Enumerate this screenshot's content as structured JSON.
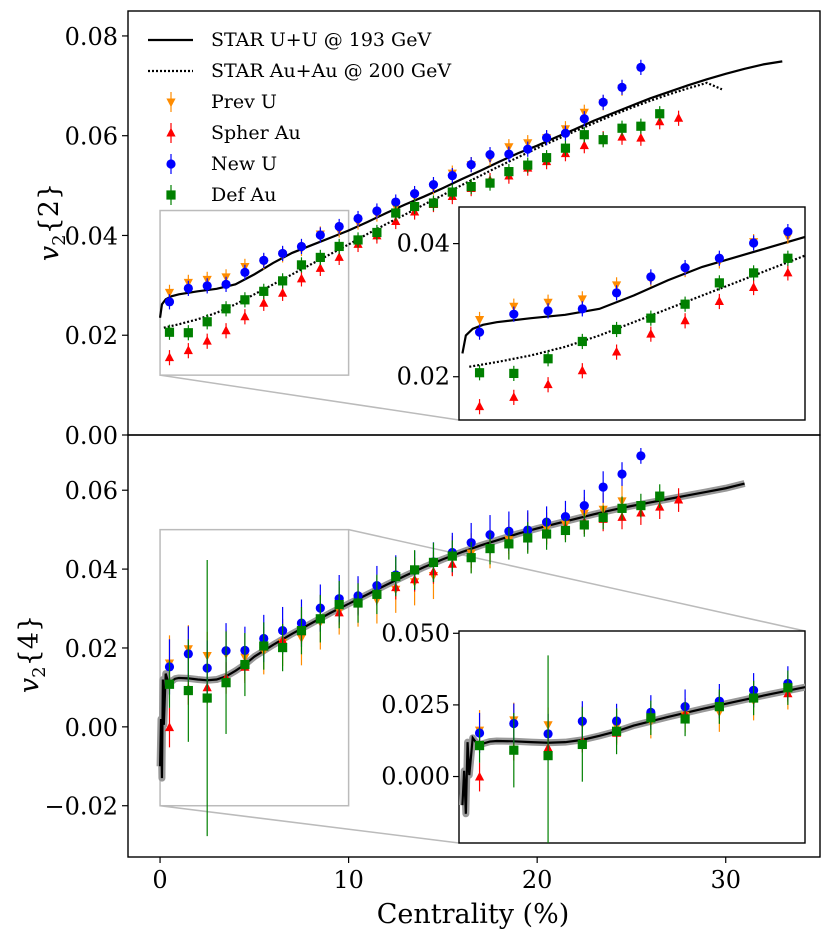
{
  "chart_data": [
    {
      "type": "scatter",
      "panel": "top",
      "ylabel": "v2{2}",
      "ylabel_main": "v",
      "ylabel_sub": "2",
      "ylabel_brace": "{2}",
      "xlim": [
        -1.7,
        35
      ],
      "ylim": [
        0.0,
        0.085
      ],
      "yticks": [
        0.0,
        0.02,
        0.04,
        0.06,
        0.08
      ],
      "ytick_labels": [
        "0.00",
        "0.02",
        "0.04",
        "0.06",
        "0.08"
      ],
      "legend_position": "top-left",
      "legend": [
        {
          "key": "star_uu",
          "label": "STAR U+U @ 193 GeV",
          "style": "solid-line"
        },
        {
          "key": "star_auau",
          "label": "STAR Au+Au @ 200 GeV",
          "style": "dotted-line"
        },
        {
          "key": "prev_u",
          "label": "Prev U",
          "style": "triangle-down",
          "color": "#ff8c00"
        },
        {
          "key": "spher_au",
          "label": "Spher Au",
          "style": "triangle-up",
          "color": "#ff0000"
        },
        {
          "key": "new_u",
          "label": "New U",
          "style": "circle",
          "color": "#0000ff"
        },
        {
          "key": "def_au",
          "label": "Def Au",
          "style": "square",
          "color": "#008000"
        }
      ],
      "lines": [
        {
          "name": "STAR U+U @ 193 GeV",
          "style": "solid",
          "x": [
            0,
            0.1,
            0.3,
            0.6,
            1,
            2,
            3,
            4,
            5,
            6,
            7,
            8,
            9,
            10,
            11,
            12,
            13,
            14,
            15,
            16,
            17,
            18,
            19,
            20,
            21,
            22,
            23,
            24,
            25,
            26,
            27,
            28,
            29,
            30,
            31,
            32,
            33
          ],
          "y": [
            0.0235,
            0.0262,
            0.0272,
            0.0278,
            0.0282,
            0.0288,
            0.0293,
            0.0302,
            0.0322,
            0.0345,
            0.0365,
            0.038,
            0.0395,
            0.041,
            0.0427,
            0.0445,
            0.0462,
            0.0478,
            0.0495,
            0.0513,
            0.053,
            0.0548,
            0.0565,
            0.058,
            0.0597,
            0.0613,
            0.063,
            0.0645,
            0.066,
            0.0675,
            0.0688,
            0.0701,
            0.0713,
            0.0724,
            0.0734,
            0.0743,
            0.0749
          ]
        },
        {
          "name": "STAR Au+Au @ 200 GeV",
          "style": "dotted",
          "x": [
            0.2,
            1,
            2,
            3,
            4,
            5,
            6,
            7,
            8,
            9,
            10,
            11,
            12,
            13,
            14,
            15,
            16,
            17,
            18,
            19,
            20,
            21,
            22,
            23,
            24,
            25,
            26,
            27,
            28,
            29,
            29.8
          ],
          "y": [
            0.0215,
            0.0222,
            0.0232,
            0.0245,
            0.0262,
            0.0282,
            0.0302,
            0.0322,
            0.0342,
            0.0362,
            0.0382,
            0.0403,
            0.0423,
            0.0442,
            0.0462,
            0.0481,
            0.0501,
            0.052,
            0.0539,
            0.0557,
            0.0575,
            0.0592,
            0.0609,
            0.0625,
            0.0641,
            0.0656,
            0.067,
            0.0683,
            0.0695,
            0.0706,
            0.0693
          ]
        }
      ],
      "series": [
        {
          "name": "Prev U",
          "x": [
            0.5,
            1.5,
            2.5,
            3.5,
            4.5,
            5.5,
            6.5,
            7.5,
            8.5,
            9.5,
            10.5,
            11.5,
            12.5,
            13.5,
            14.5,
            15.5,
            16.5,
            17.5,
            18.5,
            19.5,
            20.5,
            21.5,
            22.5,
            23.5,
            24.5
          ],
          "y": [
            0.0286,
            0.0306,
            0.0312,
            0.0317,
            0.0338,
            0.0347,
            0.0361,
            0.0374,
            0.0403,
            0.0411,
            0.0427,
            0.0443,
            0.0458,
            0.0479,
            0.0497,
            0.0525,
            0.0542,
            0.0555,
            0.0578,
            0.0586,
            0.0596,
            0.0614,
            0.0647,
            0.0666,
            0.0695
          ]
        },
        {
          "name": "Spher Au",
          "x": [
            0.5,
            1.5,
            2.5,
            3.5,
            4.5,
            5.5,
            6.5,
            7.5,
            8.5,
            9.5,
            10.5,
            11.5,
            12.5,
            13.5,
            14.5,
            15.5,
            16.5,
            17.5,
            18.5,
            19.5,
            20.5,
            21.5,
            22.5,
            23.5,
            24.5,
            25.5,
            26.5,
            27.5
          ],
          "y": [
            0.0155,
            0.0169,
            0.0188,
            0.0209,
            0.0237,
            0.0264,
            0.0284,
            0.0313,
            0.0334,
            0.0356,
            0.0382,
            0.0399,
            0.0428,
            0.0447,
            0.0462,
            0.0478,
            0.0494,
            0.051,
            0.0519,
            0.0535,
            0.0548,
            0.0564,
            0.058,
            0.0594,
            0.0597,
            0.0595,
            0.0628,
            0.0635
          ]
        },
        {
          "name": "New U",
          "x": [
            0.5,
            1.5,
            2.5,
            3.5,
            4.5,
            5.5,
            6.5,
            7.5,
            8.5,
            9.5,
            10.5,
            11.5,
            12.5,
            13.5,
            14.5,
            15.5,
            16.5,
            17.5,
            18.5,
            19.5,
            20.5,
            21.5,
            22.5,
            23.5,
            24.5,
            25.5
          ],
          "y": [
            0.0267,
            0.0294,
            0.0299,
            0.0302,
            0.0326,
            0.035,
            0.0364,
            0.0378,
            0.0401,
            0.0418,
            0.0434,
            0.0449,
            0.0467,
            0.0484,
            0.0502,
            0.052,
            0.0542,
            0.0562,
            0.0563,
            0.0573,
            0.0596,
            0.0605,
            0.0634,
            0.0667,
            0.0697,
            0.0737
          ]
        },
        {
          "name": "Def Au",
          "x": [
            0.5,
            1.5,
            2.5,
            3.5,
            4.5,
            5.5,
            6.5,
            7.5,
            8.5,
            9.5,
            10.5,
            11.5,
            12.5,
            13.5,
            14.5,
            15.5,
            16.5,
            17.5,
            18.5,
            19.5,
            20.5,
            21.5,
            22.5,
            23.5,
            24.5,
            25.5,
            26.5
          ],
          "y": [
            0.0206,
            0.0205,
            0.0227,
            0.0253,
            0.0271,
            0.0288,
            0.0309,
            0.0341,
            0.0356,
            0.0378,
            0.0391,
            0.0406,
            0.0445,
            0.0458,
            0.0465,
            0.0487,
            0.0498,
            0.0505,
            0.0528,
            0.0541,
            0.0556,
            0.0575,
            0.0602,
            0.0592,
            0.0615,
            0.0619,
            0.0644
          ]
        }
      ],
      "inset": {
        "xlim": [
          0,
          10
        ],
        "ylim": [
          0.012,
          0.045
        ],
        "yticks": [
          0.02,
          0.04
        ],
        "ytick_labels": [
          "0.02",
          "0.04"
        ]
      }
    },
    {
      "type": "scatter",
      "panel": "bottom",
      "ylabel": "v2{4}",
      "ylabel_main": "v",
      "ylabel_sub": "2",
      "ylabel_brace": "{4}",
      "xlabel": "Centrality (%)",
      "xlim": [
        -1.7,
        35
      ],
      "ylim": [
        -0.033,
        0.074
      ],
      "xticks": [
        0,
        10,
        20,
        30
      ],
      "xtick_labels": [
        "0",
        "10",
        "20",
        "30"
      ],
      "yticks": [
        -0.02,
        0.0,
        0.02,
        0.04,
        0.06
      ],
      "ytick_labels": [
        "−0.02",
        "0.00",
        "0.02",
        "0.04",
        "0.06"
      ],
      "lines": [
        {
          "name": "STAR U+U @ 193 GeV",
          "style": "solid-band",
          "x": [
            0.0,
            0.05,
            0.1,
            0.15,
            0.2,
            0.3,
            0.45,
            0.6,
            0.8,
            1,
            1.5,
            2,
            2.5,
            3,
            3.5,
            4,
            4.5,
            5,
            6,
            7,
            8,
            9,
            10,
            11,
            12,
            13,
            14,
            15,
            16,
            17,
            18,
            19,
            20,
            21,
            22,
            23,
            24,
            25,
            26,
            27,
            28,
            29,
            30,
            31
          ],
          "y": [
            -0.01,
            0.002,
            -0.013,
            0.012,
            0.0005,
            0.0135,
            0.011,
            0.0115,
            0.0122,
            0.0124,
            0.0123,
            0.012,
            0.0118,
            0.012,
            0.0128,
            0.0142,
            0.0158,
            0.0178,
            0.0208,
            0.0236,
            0.0262,
            0.0288,
            0.0312,
            0.0336,
            0.036,
            0.0383,
            0.0405,
            0.0425,
            0.0443,
            0.046,
            0.0475,
            0.049,
            0.0503,
            0.0515,
            0.0527,
            0.0539,
            0.055,
            0.056,
            0.0569,
            0.0578,
            0.0587,
            0.0596,
            0.0605,
            0.0617
          ]
        }
      ],
      "series": [
        {
          "name": "Prev U",
          "x": [
            0.5,
            1.5,
            2.5,
            3.5,
            4.5,
            5.5,
            6.5,
            7.5,
            8.5,
            9.5,
            10.5,
            11.5,
            12.5,
            13.5,
            14.5,
            15.5,
            16.5,
            17.5,
            18.5,
            19.5,
            20.5,
            21.5,
            22.5,
            23.5,
            24.5
          ],
          "y": [
            0.0162,
            0.0198,
            0.0181,
            0.0186,
            0.0177,
            0.0193,
            0.0214,
            0.0226,
            0.0266,
            0.0294,
            0.0314,
            0.0322,
            0.0349,
            0.0368,
            0.0384,
            0.0434,
            0.0441,
            0.0452,
            0.0475,
            0.0493,
            0.0504,
            0.0514,
            0.0542,
            0.0552,
            0.0573
          ],
          "err": [
            0.007,
            0.006,
            0.006,
            0.006,
            0.006,
            0.006,
            0.006,
            0.007,
            0.007,
            0.006,
            0.006,
            0.006,
            0.006,
            0.006,
            0.006,
            0.005,
            0.005,
            0.005,
            0.005,
            0.005,
            0.004,
            0.004,
            0.004,
            0.004,
            0.004
          ]
        },
        {
          "name": "Spher Au",
          "x": [
            0.5,
            1.5,
            2.5,
            3.5,
            4.5,
            5.5,
            6.5,
            7.5,
            8.5,
            9.5,
            10.5,
            11.5,
            12.5,
            13.5,
            14.5,
            15.5,
            16.5,
            17.5,
            18.5,
            19.5,
            20.5,
            21.5,
            22.5,
            23.5,
            24.5,
            25.5,
            26.5,
            27.5
          ],
          "y": [
            -0.0002,
            0.0096,
            0.0099,
            0.0124,
            0.0151,
            0.0202,
            0.0219,
            0.0241,
            0.0272,
            0.0289,
            0.0315,
            0.0338,
            0.0353,
            0.0373,
            0.0393,
            0.0412,
            0.0433,
            0.0453,
            0.0468,
            0.0479,
            0.0492,
            0.0505,
            0.0519,
            0.0526,
            0.0531,
            0.0542,
            0.0557,
            0.0575
          ],
          "err": [
            0.005,
            0.004,
            0.004,
            0.004,
            0.004,
            0.003,
            0.003,
            0.003,
            0.003,
            0.003,
            0.003,
            0.003,
            0.003,
            0.003,
            0.003,
            0.003,
            0.003,
            0.003,
            0.003,
            0.003,
            0.003,
            0.003,
            0.003,
            0.003,
            0.003,
            0.003,
            0.003,
            0.003
          ]
        },
        {
          "name": "New U",
          "x": [
            0.5,
            1.5,
            2.5,
            3.5,
            4.5,
            5.5,
            6.5,
            7.5,
            8.5,
            9.5,
            10.5,
            11.5,
            12.5,
            13.5,
            14.5,
            15.5,
            16.5,
            17.5,
            18.5,
            19.5,
            20.5,
            21.5,
            22.5,
            23.5,
            24.5,
            25.5
          ],
          "y": [
            0.0152,
            0.0185,
            0.0149,
            0.0193,
            0.0194,
            0.0224,
            0.0244,
            0.0263,
            0.0301,
            0.0325,
            0.0332,
            0.0358,
            0.0385,
            0.0397,
            0.0418,
            0.0442,
            0.0467,
            0.0487,
            0.0496,
            0.0499,
            0.0519,
            0.0533,
            0.0561,
            0.0608,
            0.0641,
            0.0687
          ],
          "err": [
            0.007,
            0.007,
            0.007,
            0.007,
            0.006,
            0.006,
            0.006,
            0.006,
            0.006,
            0.006,
            0.005,
            0.005,
            0.005,
            0.005,
            0.005,
            0.005,
            0.005,
            0.005,
            0.005,
            0.005,
            0.004,
            0.004,
            0.004,
            0.004,
            0.003,
            0.002
          ]
        },
        {
          "name": "Def Au",
          "x": [
            0.5,
            1.5,
            2.5,
            3.5,
            4.5,
            5.5,
            6.5,
            7.5,
            8.5,
            9.5,
            10.5,
            11.5,
            12.5,
            13.5,
            14.5,
            15.5,
            16.5,
            17.5,
            18.5,
            19.5,
            20.5,
            21.5,
            22.5,
            23.5,
            24.5,
            25.5,
            26.5
          ],
          "y": [
            0.0108,
            0.0092,
            0.0073,
            0.0112,
            0.0158,
            0.0205,
            0.0201,
            0.0244,
            0.0274,
            0.031,
            0.0314,
            0.0336,
            0.0381,
            0.0398,
            0.0417,
            0.0433,
            0.0429,
            0.0452,
            0.0464,
            0.0479,
            0.0489,
            0.0498,
            0.0512,
            0.0531,
            0.0554,
            0.0561,
            0.0585
          ],
          "err": [
            0.006,
            0.013,
            0.035,
            0.013,
            0.008,
            0.006,
            0.006,
            0.006,
            0.006,
            0.006,
            0.005,
            0.005,
            0.005,
            0.005,
            0.005,
            0.004,
            0.004,
            0.004,
            0.004,
            0.004,
            0.004,
            0.003,
            0.003,
            0.003,
            0.003,
            0.003,
            0.003
          ]
        }
      ],
      "inset": {
        "xlim": [
          0,
          10
        ],
        "ylim": [
          -0.02,
          0.05
        ],
        "yticks": [
          0.0,
          0.025,
          0.05
        ],
        "ytick_labels": [
          "0.000",
          "0.025",
          "0.050"
        ]
      }
    }
  ],
  "colors": {
    "prev_u": "#ff8c00",
    "spher_au": "#ff0000",
    "new_u": "#0000ff",
    "def_au": "#008000",
    "line": "#000000",
    "band": "#999999",
    "zoom_box": "#bbbbbb"
  }
}
